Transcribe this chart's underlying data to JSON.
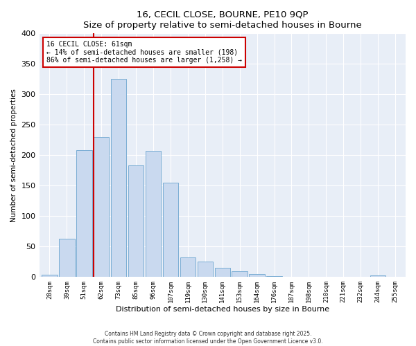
{
  "title": "16, CECIL CLOSE, BOURNE, PE10 9QP",
  "subtitle": "Size of property relative to semi-detached houses in Bourne",
  "xlabel": "Distribution of semi-detached houses by size in Bourne",
  "ylabel": "Number of semi-detached properties",
  "bar_labels": [
    "28sqm",
    "39sqm",
    "51sqm",
    "62sqm",
    "73sqm",
    "85sqm",
    "96sqm",
    "107sqm",
    "119sqm",
    "130sqm",
    "141sqm",
    "153sqm",
    "164sqm",
    "176sqm",
    "187sqm",
    "198sqm",
    "210sqm",
    "221sqm",
    "232sqm",
    "244sqm",
    "255sqm"
  ],
  "bar_values": [
    3,
    62,
    208,
    230,
    325,
    183,
    207,
    155,
    32,
    25,
    15,
    9,
    4,
    1,
    0,
    0,
    0,
    0,
    0,
    2,
    0
  ],
  "bar_color": "#c9d9ef",
  "bar_edge_color": "#7aadd4",
  "vline_x_index": 3,
  "vline_color": "#cc0000",
  "annotation_title": "16 CECIL CLOSE: 61sqm",
  "annotation_line1": "← 14% of semi-detached houses are smaller (198)",
  "annotation_line2": "86% of semi-detached houses are larger (1,258) →",
  "annotation_box_edgecolor": "#cc0000",
  "ylim": [
    0,
    400
  ],
  "yticks": [
    0,
    50,
    100,
    150,
    200,
    250,
    300,
    350,
    400
  ],
  "footer1": "Contains HM Land Registry data © Crown copyright and database right 2025.",
  "footer2": "Contains public sector information licensed under the Open Government Licence v3.0.",
  "bg_color": "#ffffff",
  "plot_bg_color": "#e8eef7",
  "grid_color": "#ffffff"
}
